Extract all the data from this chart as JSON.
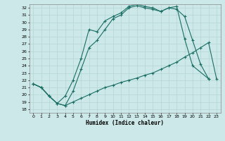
{
  "background_color": "#cce8e8",
  "grid_color": "#aacccc",
  "line_color": "#1a6e64",
  "xlabel": "Humidex (Indice chaleur)",
  "xlim": [
    -0.5,
    23.5
  ],
  "ylim": [
    17.5,
    32.5
  ],
  "yticks": [
    18,
    19,
    20,
    21,
    22,
    23,
    24,
    25,
    26,
    27,
    28,
    29,
    30,
    31,
    32
  ],
  "xticks": [
    0,
    1,
    2,
    3,
    4,
    5,
    6,
    7,
    8,
    9,
    10,
    11,
    12,
    13,
    14,
    15,
    16,
    17,
    18,
    19,
    20,
    21,
    22,
    23
  ],
  "curve1_x": [
    0,
    1,
    2,
    3,
    4,
    5,
    6,
    7,
    8,
    9,
    10,
    11,
    12,
    13,
    14,
    15,
    16,
    17,
    18,
    19,
    20,
    22
  ],
  "curve1_y": [
    21.5,
    21.0,
    19.8,
    18.8,
    19.8,
    22.0,
    25.0,
    29.0,
    28.7,
    30.2,
    30.8,
    31.3,
    32.2,
    32.5,
    32.2,
    32.0,
    31.5,
    32.0,
    32.2,
    27.7,
    24.0,
    22.2
  ],
  "curve2_x": [
    0,
    1,
    2,
    3,
    4,
    5,
    6,
    7,
    8,
    9,
    10,
    11,
    12,
    13,
    14,
    15,
    16,
    17,
    18,
    19,
    20,
    21,
    22
  ],
  "curve2_y": [
    21.5,
    21.0,
    19.8,
    18.8,
    18.5,
    20.5,
    23.5,
    26.5,
    27.5,
    29.0,
    30.5,
    31.0,
    32.0,
    32.3,
    32.0,
    31.8,
    31.5,
    32.0,
    31.8,
    30.8,
    27.5,
    24.2,
    22.2
  ],
  "curve3_x": [
    0,
    1,
    2,
    3,
    4,
    5,
    6,
    7,
    8,
    9,
    10,
    11,
    12,
    13,
    14,
    15,
    16,
    17,
    18,
    19,
    20,
    21,
    22,
    23
  ],
  "curve3_y": [
    21.5,
    21.0,
    19.8,
    18.8,
    18.5,
    19.0,
    19.5,
    20.0,
    20.5,
    21.0,
    21.3,
    21.7,
    22.0,
    22.3,
    22.7,
    23.0,
    23.5,
    24.0,
    24.5,
    25.2,
    25.8,
    26.5,
    27.2,
    22.2
  ]
}
